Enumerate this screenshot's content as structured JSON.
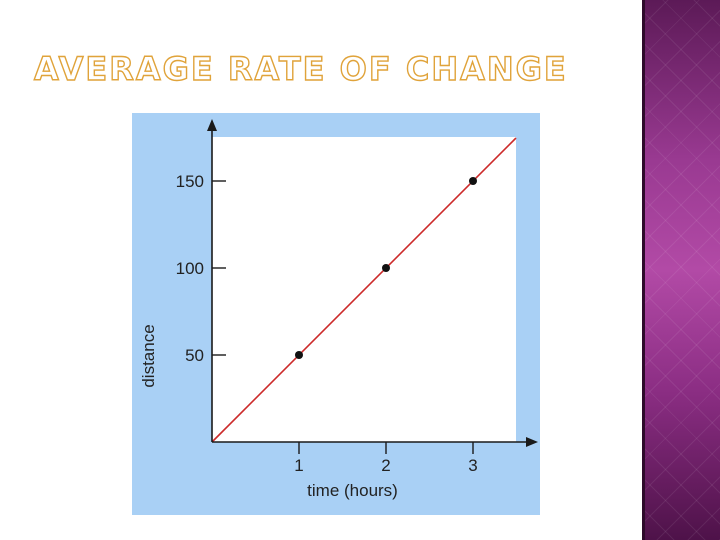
{
  "slide": {
    "title": "AVERAGE RATE OF CHANGE"
  },
  "colors": {
    "chart_background": "#a9d0f5",
    "plot_area": "#ffffff",
    "line": "#cc2a2a",
    "points": "#111111",
    "title_outline": "#e0a33a",
    "side_panel": "#9a3a92"
  },
  "chart_data": {
    "type": "scatter",
    "xlabel": "time (hours)",
    "ylabel": "distance",
    "xlim": [
      0,
      3.5
    ],
    "ylim": [
      0,
      175
    ],
    "xticks": [
      1,
      2,
      3
    ],
    "yticks": [
      50,
      100,
      150
    ],
    "grid": false,
    "series": [
      {
        "points": [
          {
            "x": 1,
            "y": 50
          },
          {
            "x": 2,
            "y": 100
          },
          {
            "x": 3,
            "y": 150
          }
        ]
      }
    ],
    "trend_line": {
      "slope": 50,
      "intercept": 0
    }
  }
}
